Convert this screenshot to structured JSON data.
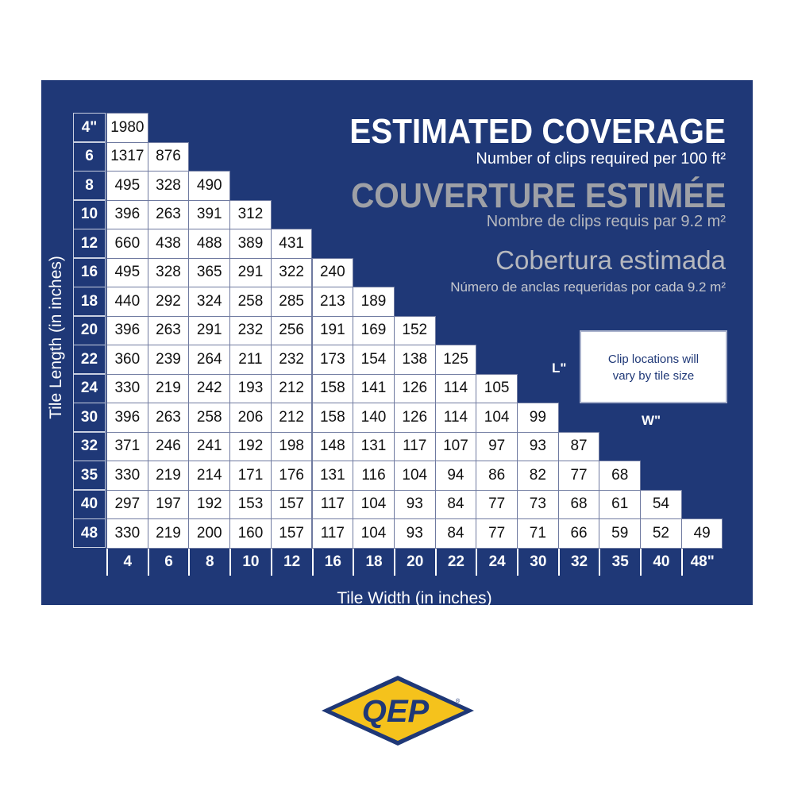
{
  "header": {
    "title_en": "ESTIMATED COVERAGE",
    "subtitle_en": "Number of clips required per 100 ft²",
    "title_fr": "COUVERTURE ESTIMÉE",
    "subtitle_fr": "Nombre de clips requis par 9.2 m²",
    "title_es": "Cobertura estimada",
    "subtitle_es": "Número  de anclas requeridas por cada 9.2 m²"
  },
  "note": {
    "line1": "Clip locations will",
    "line2": "vary by tile size",
    "l_label": "L\"",
    "w_label": "W\""
  },
  "logo": {
    "text": "QEP",
    "registered": "®"
  },
  "colors": {
    "panel": "#1f3877",
    "logo_yellow": "#f5c21c",
    "logo_navy": "#1f3877"
  },
  "chart_data": {
    "type": "table",
    "xlabel": "Tile Width (in inches)",
    "ylabel": "Tile Length (in inches)",
    "row_labels": [
      "4\"",
      "6",
      "8",
      "10",
      "12",
      "16",
      "18",
      "20",
      "22",
      "24",
      "30",
      "32",
      "35",
      "40",
      "48"
    ],
    "col_labels": [
      "4",
      "6",
      "8",
      "10",
      "12",
      "16",
      "18",
      "20",
      "22",
      "24",
      "30",
      "32",
      "35",
      "40",
      "48\""
    ],
    "rows": [
      [
        1980
      ],
      [
        1317,
        876
      ],
      [
        495,
        328,
        490
      ],
      [
        396,
        263,
        391,
        312
      ],
      [
        660,
        438,
        488,
        389,
        431
      ],
      [
        495,
        328,
        365,
        291,
        322,
        240
      ],
      [
        440,
        292,
        324,
        258,
        285,
        213,
        189
      ],
      [
        396,
        263,
        291,
        232,
        256,
        191,
        169,
        152
      ],
      [
        360,
        239,
        264,
        211,
        232,
        173,
        154,
        138,
        125
      ],
      [
        330,
        219,
        242,
        193,
        212,
        158,
        141,
        126,
        114,
        105
      ],
      [
        396,
        263,
        258,
        206,
        212,
        158,
        140,
        126,
        114,
        104,
        99
      ],
      [
        371,
        246,
        241,
        192,
        198,
        148,
        131,
        117,
        107,
        97,
        93,
        87
      ],
      [
        330,
        219,
        214,
        171,
        176,
        131,
        116,
        104,
        94,
        86,
        82,
        77,
        68
      ],
      [
        297,
        197,
        192,
        153,
        157,
        117,
        104,
        93,
        84,
        77,
        73,
        68,
        61,
        54
      ],
      [
        330,
        219,
        200,
        160,
        157,
        117,
        104,
        93,
        84,
        77,
        71,
        66,
        59,
        52,
        49
      ]
    ]
  }
}
